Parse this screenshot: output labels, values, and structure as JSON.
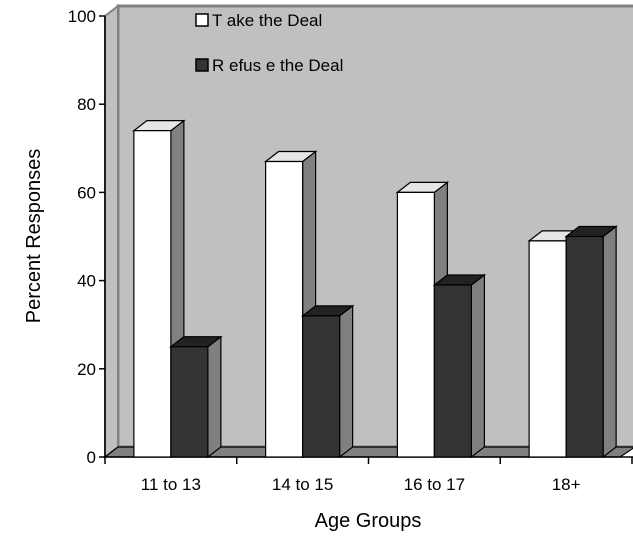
{
  "chart_data": {
    "type": "bar",
    "categories": [
      "11 to 13",
      "14 to 15",
      "16 to 17",
      "18+"
    ],
    "series": [
      {
        "name": "T ake the Deal",
        "values": [
          74,
          67,
          60,
          49
        ],
        "color": "#ffffff"
      },
      {
        "name": "R efus e the Deal",
        "values": [
          25,
          32,
          39,
          50
        ],
        "color": "#333333"
      }
    ],
    "xlabel": "Age Groups",
    "ylabel": "Percent Responses",
    "ylim": [
      0,
      100
    ],
    "yticks": [
      0,
      20,
      40,
      60,
      80,
      100
    ],
    "grid": false,
    "legend": "top-center",
    "style": "3d",
    "colors": {
      "plot_background": "#c0c0c0",
      "wall_edge": "#808080",
      "floor": "#808080",
      "bar_side": "#808080"
    }
  }
}
